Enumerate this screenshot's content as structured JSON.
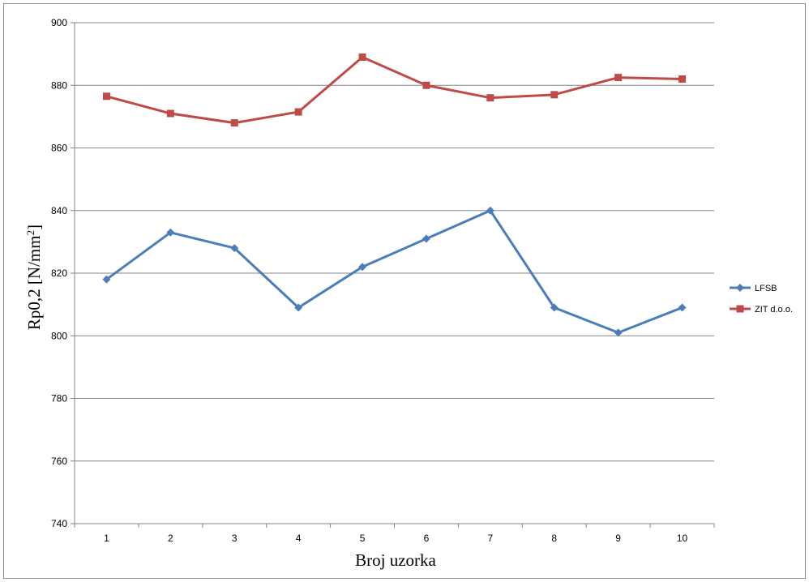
{
  "chart_data": {
    "type": "line",
    "title": "",
    "xlabel": "Broj uzorka",
    "ylabel": "Rp0,2 [N/mm",
    "ylabel_sup": "2",
    "ylabel_close": "]",
    "categories": [
      "1",
      "2",
      "3",
      "4",
      "5",
      "6",
      "7",
      "8",
      "9",
      "10"
    ],
    "ylim": [
      740,
      900
    ],
    "yticks": [
      740,
      760,
      780,
      800,
      820,
      840,
      860,
      880,
      900
    ],
    "grid": true,
    "legend_position": "right",
    "series": [
      {
        "name": "LFSB",
        "color": "#4a7ebb",
        "marker": "diamond",
        "values": [
          818,
          833,
          828,
          809,
          822,
          831,
          840,
          809,
          801,
          809
        ]
      },
      {
        "name": "ZIT d.o.o.",
        "color": "#be4b48",
        "marker": "square",
        "values": [
          876.5,
          871,
          868,
          871.5,
          889,
          880,
          876,
          877,
          882.5,
          882
        ]
      }
    ]
  }
}
